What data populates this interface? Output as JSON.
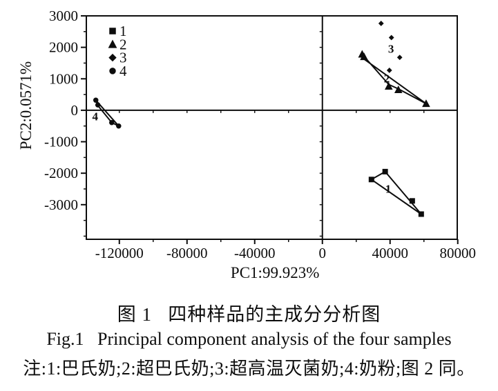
{
  "figure_caption": {
    "caption_zh": "图 1   四种样品的主成分分析图",
    "caption_en": "Fig.1   Principal component analysis of the four samples",
    "note": "注:1:巴氏奶;2:超巴氏奶;3:超高温灭菌奶;4:奶粉;图 2 同。"
  },
  "colors": {
    "ink": "#0d0d0d",
    "background": "#ffffff"
  },
  "chart_data": {
    "type": "scatter",
    "title": "",
    "xlabel": "PC1:99.923%",
    "ylabel": "PC2:0.0571%",
    "xlim": [
      -139500,
      79700
    ],
    "ylim": [
      -4100,
      3000
    ],
    "xticks": [
      -120000,
      -80000,
      -40000,
      0,
      40000,
      80000
    ],
    "yticks": [
      -3000,
      -2000,
      -1000,
      0,
      1000,
      2000,
      3000
    ],
    "x_minor_step": 20000,
    "y_minor_step": 500,
    "zero_cross_axes": true,
    "grid": false,
    "legend": {
      "position": "top-left",
      "items": [
        "1",
        "2",
        "3",
        "4"
      ]
    },
    "series": [
      {
        "name": "1",
        "sample": "巴氏奶",
        "marker": "square",
        "points": [
          [
            29000,
            -2200
          ],
          [
            37100,
            -1950
          ],
          [
            53100,
            -2880
          ],
          [
            58400,
            -3300
          ]
        ],
        "hull": [
          [
            29000,
            -2200
          ],
          [
            37100,
            -1950
          ],
          [
            58400,
            -3300
          ]
        ],
        "label_pos": [
          38900,
          -2490
        ]
      },
      {
        "name": "2",
        "sample": "超巴氏奶",
        "marker": "triangle",
        "points": [
          [
            23500,
            1780
          ],
          [
            24600,
            1700
          ],
          [
            39200,
            760
          ],
          [
            44900,
            650
          ],
          [
            61300,
            210
          ]
        ],
        "hull": [
          [
            23500,
            1780
          ],
          [
            39200,
            820
          ],
          [
            44900,
            680
          ],
          [
            61300,
            210
          ],
          [
            23500,
            1670
          ]
        ],
        "label_pos": [
          38050,
          1020
        ]
      },
      {
        "name": "3",
        "sample": "超高温灭菌奶",
        "marker": "diamond",
        "points": [
          [
            34700,
            2760
          ],
          [
            40800,
            2310
          ],
          [
            45700,
            1680
          ],
          [
            39600,
            1270
          ]
        ],
        "hull": [],
        "label_pos": [
          40550,
          1960
        ]
      },
      {
        "name": "4",
        "sample": "奶粉",
        "marker": "circle",
        "points": [
          [
            -133900,
            320
          ],
          [
            -132700,
            170
          ],
          [
            -124500,
            -390
          ],
          [
            -120400,
            -500
          ]
        ],
        "hull": [
          [
            -133900,
            320
          ],
          [
            -120400,
            -500
          ],
          [
            -124500,
            -390
          ],
          [
            -132700,
            150
          ]
        ],
        "label_pos": [
          -134300,
          -190
        ]
      }
    ]
  }
}
